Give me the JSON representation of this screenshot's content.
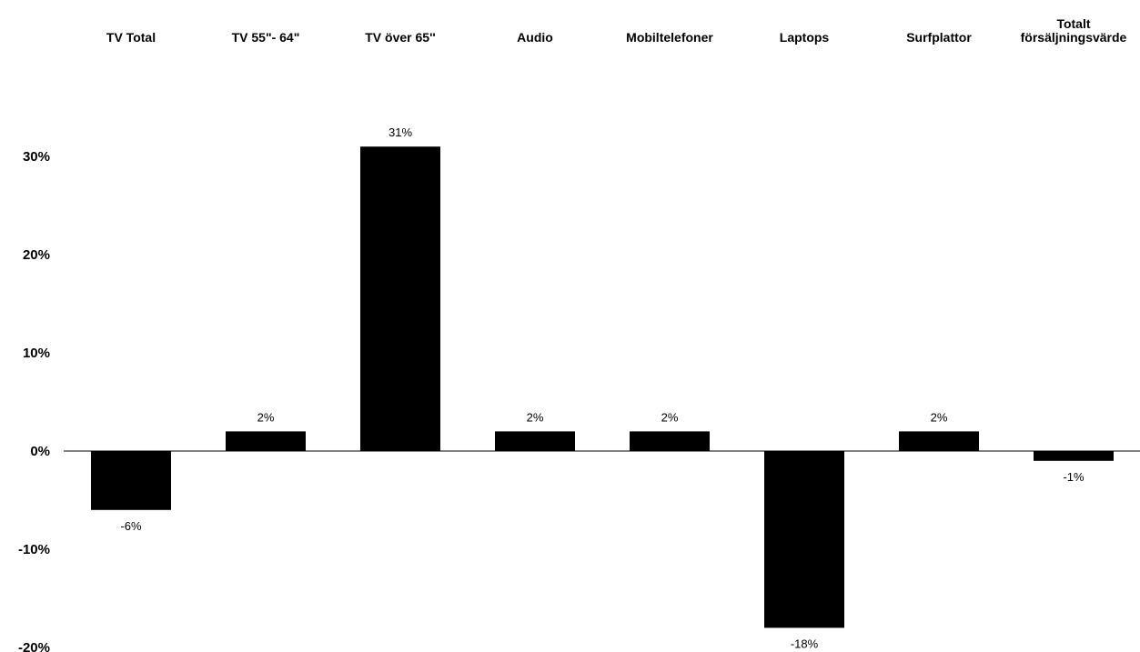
{
  "chart_data": {
    "type": "bar",
    "title": "",
    "xlabel": "",
    "ylabel": "",
    "categories": [
      [
        "TV Total"
      ],
      [
        "TV 55\"- 64\""
      ],
      [
        "TV över 65''"
      ],
      [
        "Audio"
      ],
      [
        "Mobiltelefoner"
      ],
      [
        "Laptops"
      ],
      [
        "Surfplattor"
      ],
      [
        "Totalt",
        "försäljningsvärde"
      ]
    ],
    "values": [
      -6,
      2,
      31,
      2,
      2,
      -18,
      2,
      -1
    ],
    "data_labels": [
      "-6%",
      "2%",
      "31%",
      "2%",
      "2%",
      "-18%",
      "2%",
      "-1%"
    ],
    "y_ticks": [
      30,
      20,
      10,
      0,
      -10,
      -20
    ],
    "y_tick_labels": [
      "30%",
      "20%",
      "10%",
      "0%",
      "-10%",
      "-20%"
    ],
    "ylim": [
      -20,
      30
    ],
    "category_axis_position": "top",
    "grid": false,
    "legend": "none",
    "bar_color": "#000000"
  }
}
